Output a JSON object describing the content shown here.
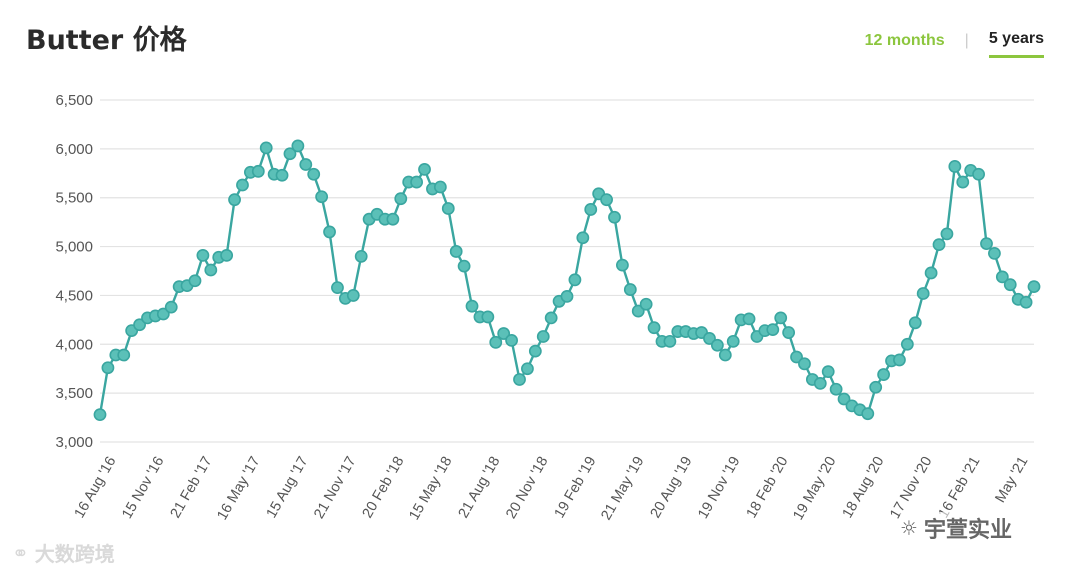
{
  "header": {
    "title": "Butter 价格",
    "tabs": [
      {
        "label": "12 months",
        "active": false
      },
      {
        "label": "5 years",
        "active": true
      }
    ],
    "separator": "|"
  },
  "watermarks": {
    "left": "大数跨境",
    "left_icon": "wechat-like-logo-icon",
    "right": "宇萱实业",
    "right_icon": "wechat-icon"
  },
  "colors": {
    "series": "#3aa6a0",
    "marker_fill": "#5bc0b8",
    "grid": "#e3e3e3",
    "active_tab": "#8cc63e",
    "axis_text": "#555555"
  },
  "chart_data": {
    "type": "line",
    "title": "Butter 价格",
    "xlabel": "",
    "ylabel": "",
    "ylim": [
      3000,
      6500
    ],
    "yticks": [
      3000,
      3500,
      4000,
      4500,
      5000,
      5500,
      6000,
      6500
    ],
    "ytick_labels": [
      "3,000",
      "3,500",
      "4,000",
      "4,500",
      "5,000",
      "5,500",
      "6,000",
      "6,500"
    ],
    "xtick_labels": [
      "16 Aug '16",
      "15 Nov '16",
      "21 Feb '17",
      "16 May '17",
      "15 Aug '17",
      "21 Nov '17",
      "20 Feb '18",
      "15 May '18",
      "21 Aug '18",
      "20 Nov '18",
      "19 Feb '19",
      "21 May '19",
      "20 Aug '19",
      "19 Nov '19",
      "18 Feb '20",
      "19 May '20",
      "18 Aug '20",
      "17 Nov '20",
      "16 Feb '21",
      "May '21"
    ],
    "grid": true,
    "legend": "none",
    "series": [
      {
        "values": [
          3280,
          3760,
          3890,
          3890,
          4140,
          4200,
          4270,
          4290,
          4310,
          4380,
          4590,
          4600,
          4650,
          4910,
          4760,
          4890,
          4910,
          5480,
          5630,
          5760,
          5770,
          6010,
          5740,
          5730,
          5950,
          6030,
          5840,
          5740,
          5510,
          5150,
          4580,
          4470,
          4500,
          4900,
          5280,
          5330,
          5280,
          5280,
          5490,
          5660,
          5660,
          5790,
          5590,
          5610,
          5390,
          4950,
          4800,
          4390,
          4280,
          4280,
          4020,
          4110,
          4040,
          3640,
          3750,
          3930,
          4080,
          4270,
          4440,
          4490,
          4660,
          5090,
          5380,
          5540,
          5480,
          5300,
          4810,
          4560,
          4340,
          4410,
          4170,
          4030,
          4030,
          4130,
          4130,
          4110,
          4120,
          4060,
          3990,
          3890,
          4030,
          4250,
          4260,
          4080,
          4140,
          4150,
          4270,
          4120,
          3870,
          3800,
          3640,
          3600,
          3720,
          3540,
          3440,
          3370,
          3330,
          3290,
          3560,
          3690,
          3830,
          3840,
          4000,
          4220,
          4520,
          4730,
          5020,
          5130,
          5820,
          5660,
          5780,
          5740,
          5030,
          4930,
          4690,
          4610,
          4460,
          4430,
          4590
        ]
      }
    ]
  }
}
